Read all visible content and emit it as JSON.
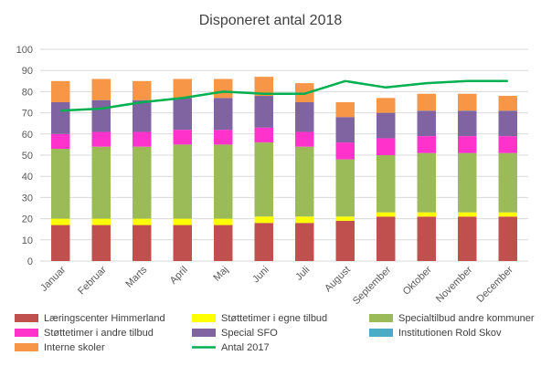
{
  "chart_data": {
    "type": "bar",
    "stacked": true,
    "title": "Disponeret antal 2018",
    "categories": [
      "Januar",
      "Februar",
      "Marts",
      "April",
      "Maj",
      "Juni",
      "Juli",
      "August",
      "September",
      "Oktober",
      "November",
      "December"
    ],
    "ylim": [
      0,
      100
    ],
    "yticks": [
      0,
      10,
      20,
      30,
      40,
      50,
      60,
      70,
      80,
      90,
      100
    ],
    "grid": true,
    "legend_position": "bottom",
    "series": [
      {
        "name": "Læringscenter Himmerland",
        "color": "#C0504D",
        "values": [
          17,
          17,
          17,
          17,
          17,
          18,
          18,
          19,
          21,
          21,
          21,
          21
        ]
      },
      {
        "name": "Støttetimer i egne tilbud",
        "color": "#FFFF00",
        "values": [
          3,
          3,
          3,
          3,
          3,
          3,
          3,
          2,
          2,
          2,
          2,
          2
        ]
      },
      {
        "name": "Specialtilbud andre kommuner",
        "color": "#9BBB59",
        "values": [
          33,
          34,
          34,
          35,
          35,
          35,
          33,
          27,
          27,
          28,
          28,
          28
        ]
      },
      {
        "name": "Støttetimer i andre tilbud",
        "color": "#FF33CC",
        "values": [
          7,
          7,
          7,
          7,
          7,
          7,
          7,
          8,
          8,
          8,
          8,
          8
        ]
      },
      {
        "name": "Special SFO",
        "color": "#8064A2",
        "values": [
          15,
          15,
          15,
          15,
          15,
          15,
          14,
          12,
          12,
          12,
          12,
          12
        ]
      },
      {
        "name": "Institutionen Rold Skov",
        "color": "#4BACC6",
        "values": [
          0,
          0,
          0,
          0,
          0,
          0,
          0,
          0,
          0,
          0,
          0,
          0
        ]
      },
      {
        "name": "Interne skoler",
        "color": "#F79646",
        "values": [
          10,
          10,
          9,
          9,
          9,
          9,
          9,
          7,
          7,
          8,
          8,
          7
        ]
      }
    ],
    "line": {
      "name": "Antal 2017",
      "color": "#00B050",
      "values": [
        71,
        72,
        75,
        77,
        80,
        79,
        79,
        85,
        82,
        84,
        85,
        85
      ]
    }
  }
}
